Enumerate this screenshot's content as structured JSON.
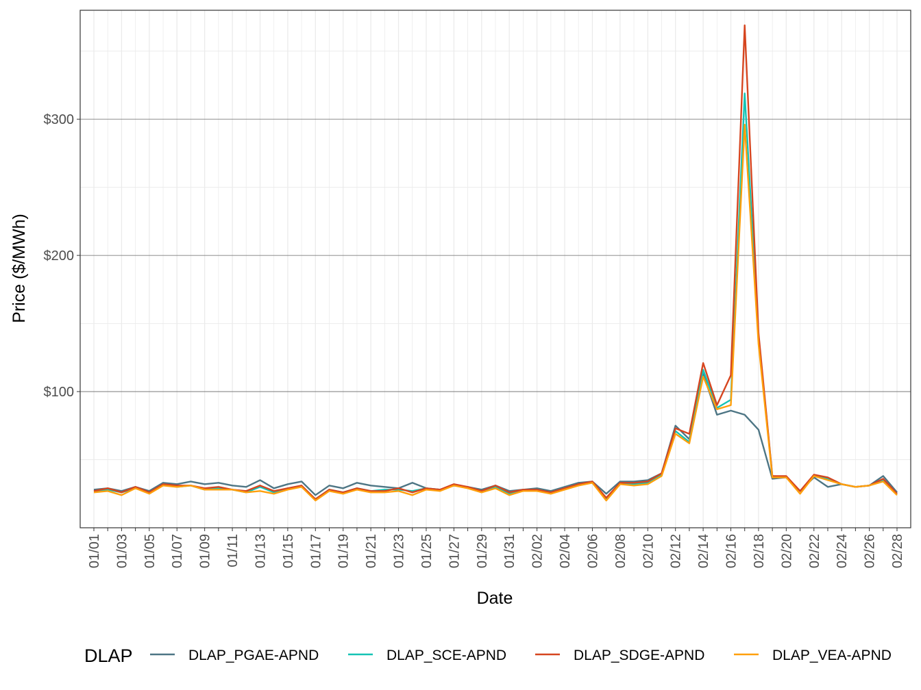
{
  "chart_data": {
    "type": "line",
    "xlabel": "Date",
    "ylabel": "Price ($/MWh)",
    "x_tick_labels": [
      "01/01",
      "01/03",
      "01/05",
      "01/07",
      "01/09",
      "01/11",
      "01/13",
      "01/15",
      "01/17",
      "01/19",
      "01/21",
      "01/23",
      "01/25",
      "01/27",
      "01/29",
      "01/31",
      "02/02",
      "02/04",
      "02/06",
      "02/08",
      "02/10",
      "02/12",
      "02/14",
      "02/16",
      "02/18",
      "02/20",
      "02/22",
      "02/24",
      "02/26",
      "02/28"
    ],
    "y_tick_values": [
      100,
      200,
      300
    ],
    "y_tick_labels": [
      "$100",
      "$200",
      "$300"
    ],
    "ylim": [
      0,
      380
    ],
    "grid": true,
    "legend_title": "DLAP",
    "legend_position": "bottom",
    "series": [
      {
        "name": "DLAP_PGAE-APND",
        "color": "#4d7584",
        "values": [
          28,
          29,
          27,
          30,
          27,
          33,
          32,
          34,
          32,
          33,
          31,
          30,
          35,
          29,
          32,
          34,
          24,
          31,
          29,
          33,
          31,
          30,
          29,
          33,
          29,
          28,
          31,
          30,
          28,
          31,
          27,
          28,
          29,
          27,
          30,
          33,
          34,
          25,
          34,
          34,
          35,
          40,
          75,
          65,
          113,
          83,
          86,
          83,
          72,
          36,
          37,
          27,
          37,
          30,
          32,
          30,
          31,
          38,
          26
        ]
      },
      {
        "name": "DLAP_SCE-APND",
        "color": "#14c3b4",
        "values": [
          27,
          28,
          26,
          29,
          26,
          32,
          30,
          31,
          28,
          29,
          28,
          26,
          30,
          26,
          29,
          30,
          21,
          28,
          26,
          29,
          27,
          28,
          28,
          27,
          29,
          28,
          31,
          30,
          27,
          30,
          25,
          28,
          28,
          26,
          29,
          32,
          33,
          21,
          33,
          32,
          33,
          39,
          71,
          63,
          116,
          88,
          94,
          319,
          140,
          38,
          37,
          27,
          38,
          36,
          32,
          30,
          31,
          35,
          25
        ]
      },
      {
        "name": "DLAP_SDGE-APND",
        "color": "#d6451f",
        "values": [
          27,
          29,
          26,
          30,
          26,
          32,
          31,
          31,
          29,
          30,
          28,
          27,
          31,
          27,
          29,
          31,
          21,
          28,
          26,
          29,
          27,
          27,
          29,
          26,
          29,
          28,
          32,
          30,
          27,
          31,
          26,
          28,
          28,
          26,
          29,
          32,
          34,
          22,
          33,
          33,
          34,
          40,
          73,
          69,
          121,
          90,
          112,
          369,
          143,
          38,
          38,
          27,
          39,
          37,
          32,
          30,
          31,
          36,
          25
        ]
      },
      {
        "name": "DLAP_VEA-APND",
        "color": "#ff9f0c",
        "values": [
          26,
          27,
          24,
          29,
          25,
          31,
          30,
          31,
          28,
          28,
          28,
          26,
          27,
          25,
          28,
          30,
          20,
          27,
          25,
          28,
          26,
          26,
          27,
          24,
          28,
          27,
          31,
          29,
          26,
          29,
          24,
          27,
          27,
          25,
          28,
          31,
          33,
          20,
          32,
          31,
          32,
          38,
          69,
          62,
          111,
          87,
          90,
          296,
          135,
          37,
          37,
          25,
          38,
          35,
          32,
          30,
          31,
          34,
          24
        ]
      }
    ]
  }
}
